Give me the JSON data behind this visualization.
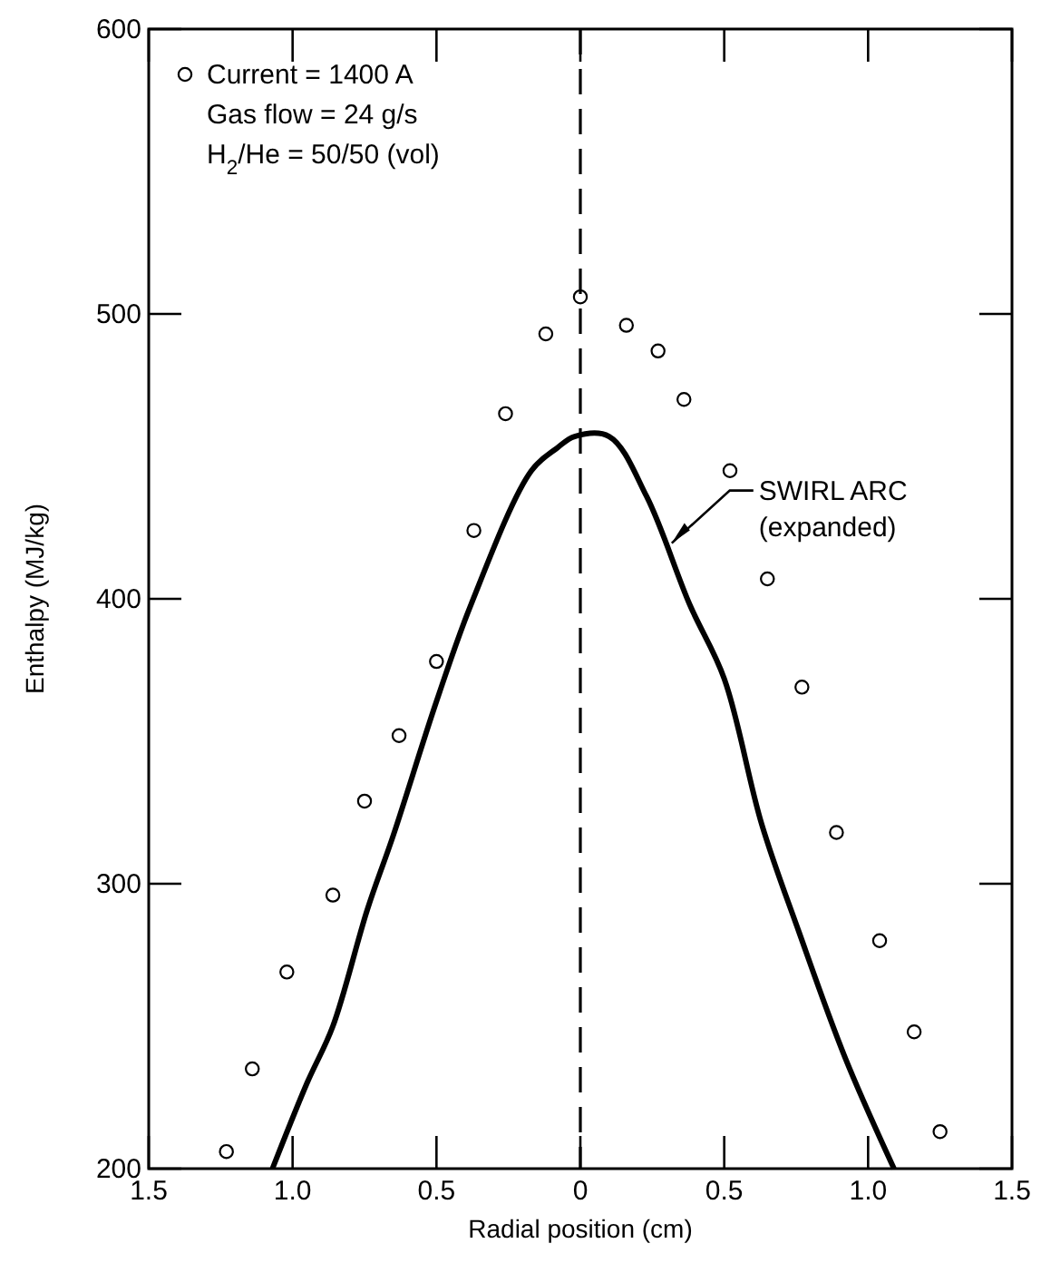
{
  "chart_data": {
    "type": "scatter",
    "xlabel": "Radial position (cm)",
    "ylabel": "Enthalpy (MJ/kg)",
    "xlim": [
      -1.5,
      1.5
    ],
    "ylim": [
      200,
      600
    ],
    "xticks": [
      {
        "value": -1.5,
        "label": "1.5"
      },
      {
        "value": -1,
        "label": "1.0"
      },
      {
        "value": -0.5,
        "label": "0.5"
      },
      0,
      {
        "value": 0.5,
        "label": "0.5"
      },
      {
        "value": 1,
        "label": "1.0"
      },
      {
        "value": 1.5,
        "label": "1.5"
      }
    ],
    "yticks": [
      200,
      300,
      400,
      500,
      600
    ],
    "grid": false,
    "legend": "top left",
    "series": [
      {
        "name": "Current = 1400 A",
        "marker": "circle",
        "color": "#000000",
        "x": [
          -1.23,
          -1.14,
          -1.02,
          -0.86,
          -0.75,
          -0.63,
          -0.5,
          -0.37,
          -0.26,
          -0.12,
          0,
          0.16,
          0.27,
          0.36,
          0.52,
          0.65,
          0.77,
          0.89,
          1.04,
          1.16,
          1.25
        ],
        "values": [
          206,
          235,
          269,
          296,
          329,
          352,
          378,
          424,
          465,
          493,
          506,
          496,
          487,
          470,
          445,
          407,
          369,
          318,
          280,
          248,
          213
        ]
      },
      {
        "name": "SWIRL ARC (expanded)",
        "type": "line",
        "marker": "none",
        "line_style": "solid",
        "color": "#000000",
        "x": [
          -1.07,
          -0.95,
          -0.86,
          -0.74,
          -0.65,
          -0.5,
          -0.38,
          -0.17,
          -0.08,
          -0.02,
          0.1,
          0.23,
          0.38,
          0.5,
          0.63,
          0.76,
          0.92,
          1.09
        ],
        "values": [
          200,
          230,
          250,
          291,
          317,
          364,
          398,
          445,
          453,
          457,
          457,
          436,
          398,
          372,
          321,
          283,
          239,
          200
        ]
      }
    ],
    "annotations": [
      "Gas flow = 24 g/s",
      "H$_{2}$/He = 50/50 (vol)"
    ],
    "ref_lines": [
      {
        "axis": "x",
        "value": 0,
        "color": "#000000",
        "line_style": "dashed"
      }
    ]
  }
}
